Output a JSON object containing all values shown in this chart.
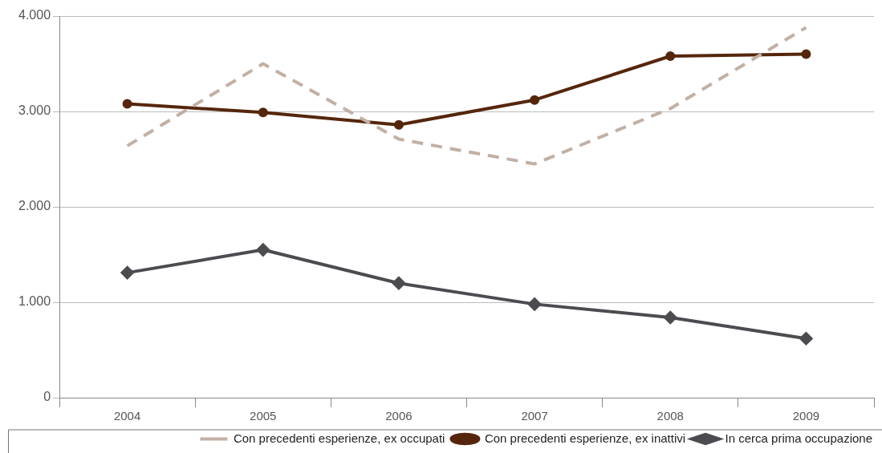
{
  "chart_data": {
    "type": "line",
    "categories": [
      "2004",
      "2005",
      "2006",
      "2007",
      "2008",
      "2009"
    ],
    "series": [
      {
        "name": "Con precedenti esperienze, ex occupati",
        "color": "#c2b0a5",
        "line_style": "dashed",
        "marker": "none",
        "values": [
          2640,
          3500,
          2710,
          2450,
          3030,
          3880
        ]
      },
      {
        "name": "Con precedenti esperienze, ex inattivi",
        "color": "#55260c",
        "marker": "circle",
        "values": [
          3080,
          2990,
          2860,
          3120,
          3580,
          3600
        ]
      },
      {
        "name": "In cerca prima occupazione",
        "color": "#4d4b50",
        "marker": "diamond",
        "values": [
          1310,
          1550,
          1200,
          980,
          840,
          620
        ]
      }
    ],
    "ylim": [
      0,
      4000
    ],
    "yticks": [
      {
        "value": 0,
        "label": "0"
      },
      {
        "value": 1000,
        "label": "1.000"
      },
      {
        "value": 2000,
        "label": "2.000"
      },
      {
        "value": 3000,
        "label": "3.000"
      },
      {
        "value": 4000,
        "label": "4.000"
      }
    ],
    "grid": "y",
    "legend": "bottom"
  }
}
